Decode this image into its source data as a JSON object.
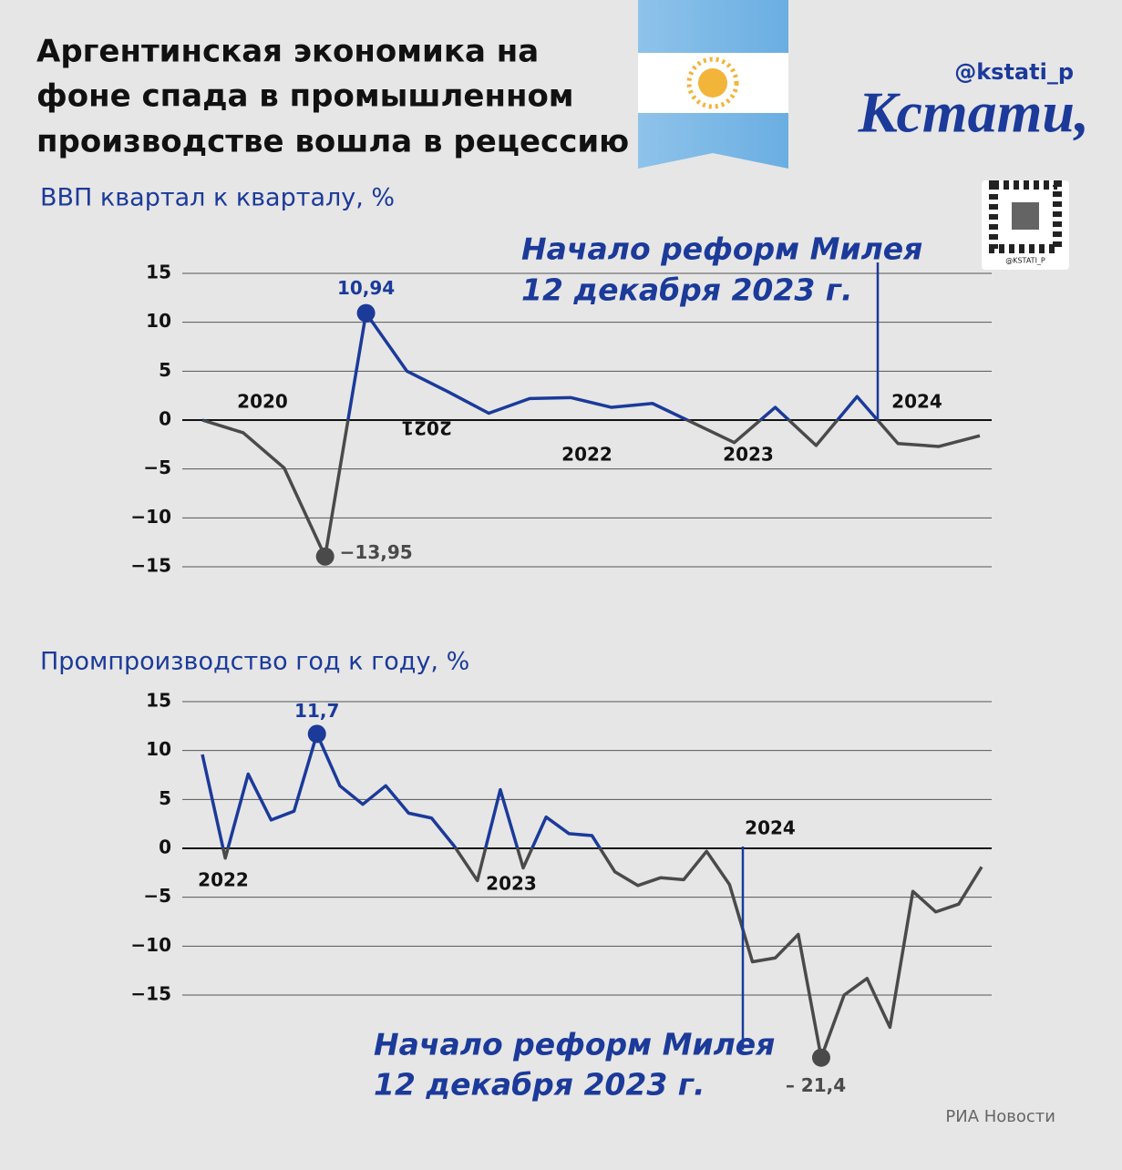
{
  "header": {
    "title": [
      "Аргентинская экономика на",
      "фоне спада в промышленном",
      "производстве вошла в рецессию"
    ],
    "handle": "@kstati_p",
    "logo": "Кстати,",
    "qr_caption": "@KSTATI_P"
  },
  "chart_data": [
    {
      "type": "line",
      "title": "ВВП квартал к кварталу, %",
      "values": [
        0,
        -1.3,
        -4.9,
        -13.95,
        10.94,
        5.0,
        2.9,
        0.7,
        2.2,
        2.3,
        1.3,
        1.7,
        -0.3,
        -2.3,
        1.3,
        -2.6,
        2.4,
        -2.4,
        -2.7,
        -1.6
      ],
      "value_labels": [
        null,
        null,
        null,
        "−13,95",
        "10,94",
        null,
        null,
        null,
        null,
        null,
        null,
        null,
        null,
        null,
        null,
        null,
        null,
        null,
        null,
        null
      ],
      "colors": {
        "positive": "#1b3a9a",
        "negative": "#4a4a4a"
      },
      "ylim": [
        -15,
        15
      ],
      "yticks": [
        {
          "value": 15,
          "label": "15"
        },
        {
          "value": 10,
          "label": "10"
        },
        {
          "value": 5,
          "label": "5"
        },
        0,
        {
          "value": -5,
          "label": "−5"
        },
        {
          "value": -10,
          "label": "−10"
        },
        {
          "value": -15,
          "label": "−15"
        }
      ],
      "grid": true,
      "year_labels": [
        "2020",
        "2021",
        "2022",
        "2023",
        "2024"
      ],
      "annotation": [
        "Начало реформ Милея",
        "12 декабря 2023 г."
      ]
    },
    {
      "type": "line",
      "title": "Промпроизводство год к году, %",
      "values": [
        9.6,
        -1.0,
        7.6,
        2.9,
        3.8,
        11.7,
        6.4,
        4.5,
        6.4,
        3.6,
        3.1,
        0.2,
        -3.3,
        6.0,
        -2.0,
        3.2,
        1.5,
        1.3,
        -2.4,
        -3.8,
        -3.0,
        -3.2,
        -0.3,
        -3.7,
        -11.6,
        -11.2,
        -8.8,
        -21.4,
        -15.0,
        -13.3,
        -18.3,
        -4.4,
        -6.5,
        -5.7,
        -1.9
      ],
      "value_labels": [
        null,
        null,
        null,
        null,
        null,
        "11,7",
        null,
        null,
        null,
        null,
        null,
        null,
        null,
        null,
        null,
        null,
        null,
        null,
        null,
        null,
        null,
        null,
        null,
        null,
        null,
        null,
        null,
        "– 21,4",
        null,
        null,
        null,
        null,
        null,
        null,
        null
      ],
      "colors": {
        "positive": "#1b3a9a",
        "negative": "#4a4a4a"
      },
      "ylim": [
        -15,
        15
      ],
      "yticks": [
        {
          "value": 15,
          "label": "15"
        },
        {
          "value": 10,
          "label": "10"
        },
        {
          "value": 5,
          "label": "5"
        },
        0,
        {
          "value": -5,
          "label": "−5"
        },
        {
          "value": -10,
          "label": "−10"
        },
        {
          "value": -15,
          "label": "−15"
        }
      ],
      "grid": true,
      "year_labels": [
        "2022",
        "2023",
        "2024"
      ],
      "annotation": [
        "Начало реформ Милея",
        "12 декабря 2023 г."
      ]
    }
  ],
  "source": "РИА Новости"
}
